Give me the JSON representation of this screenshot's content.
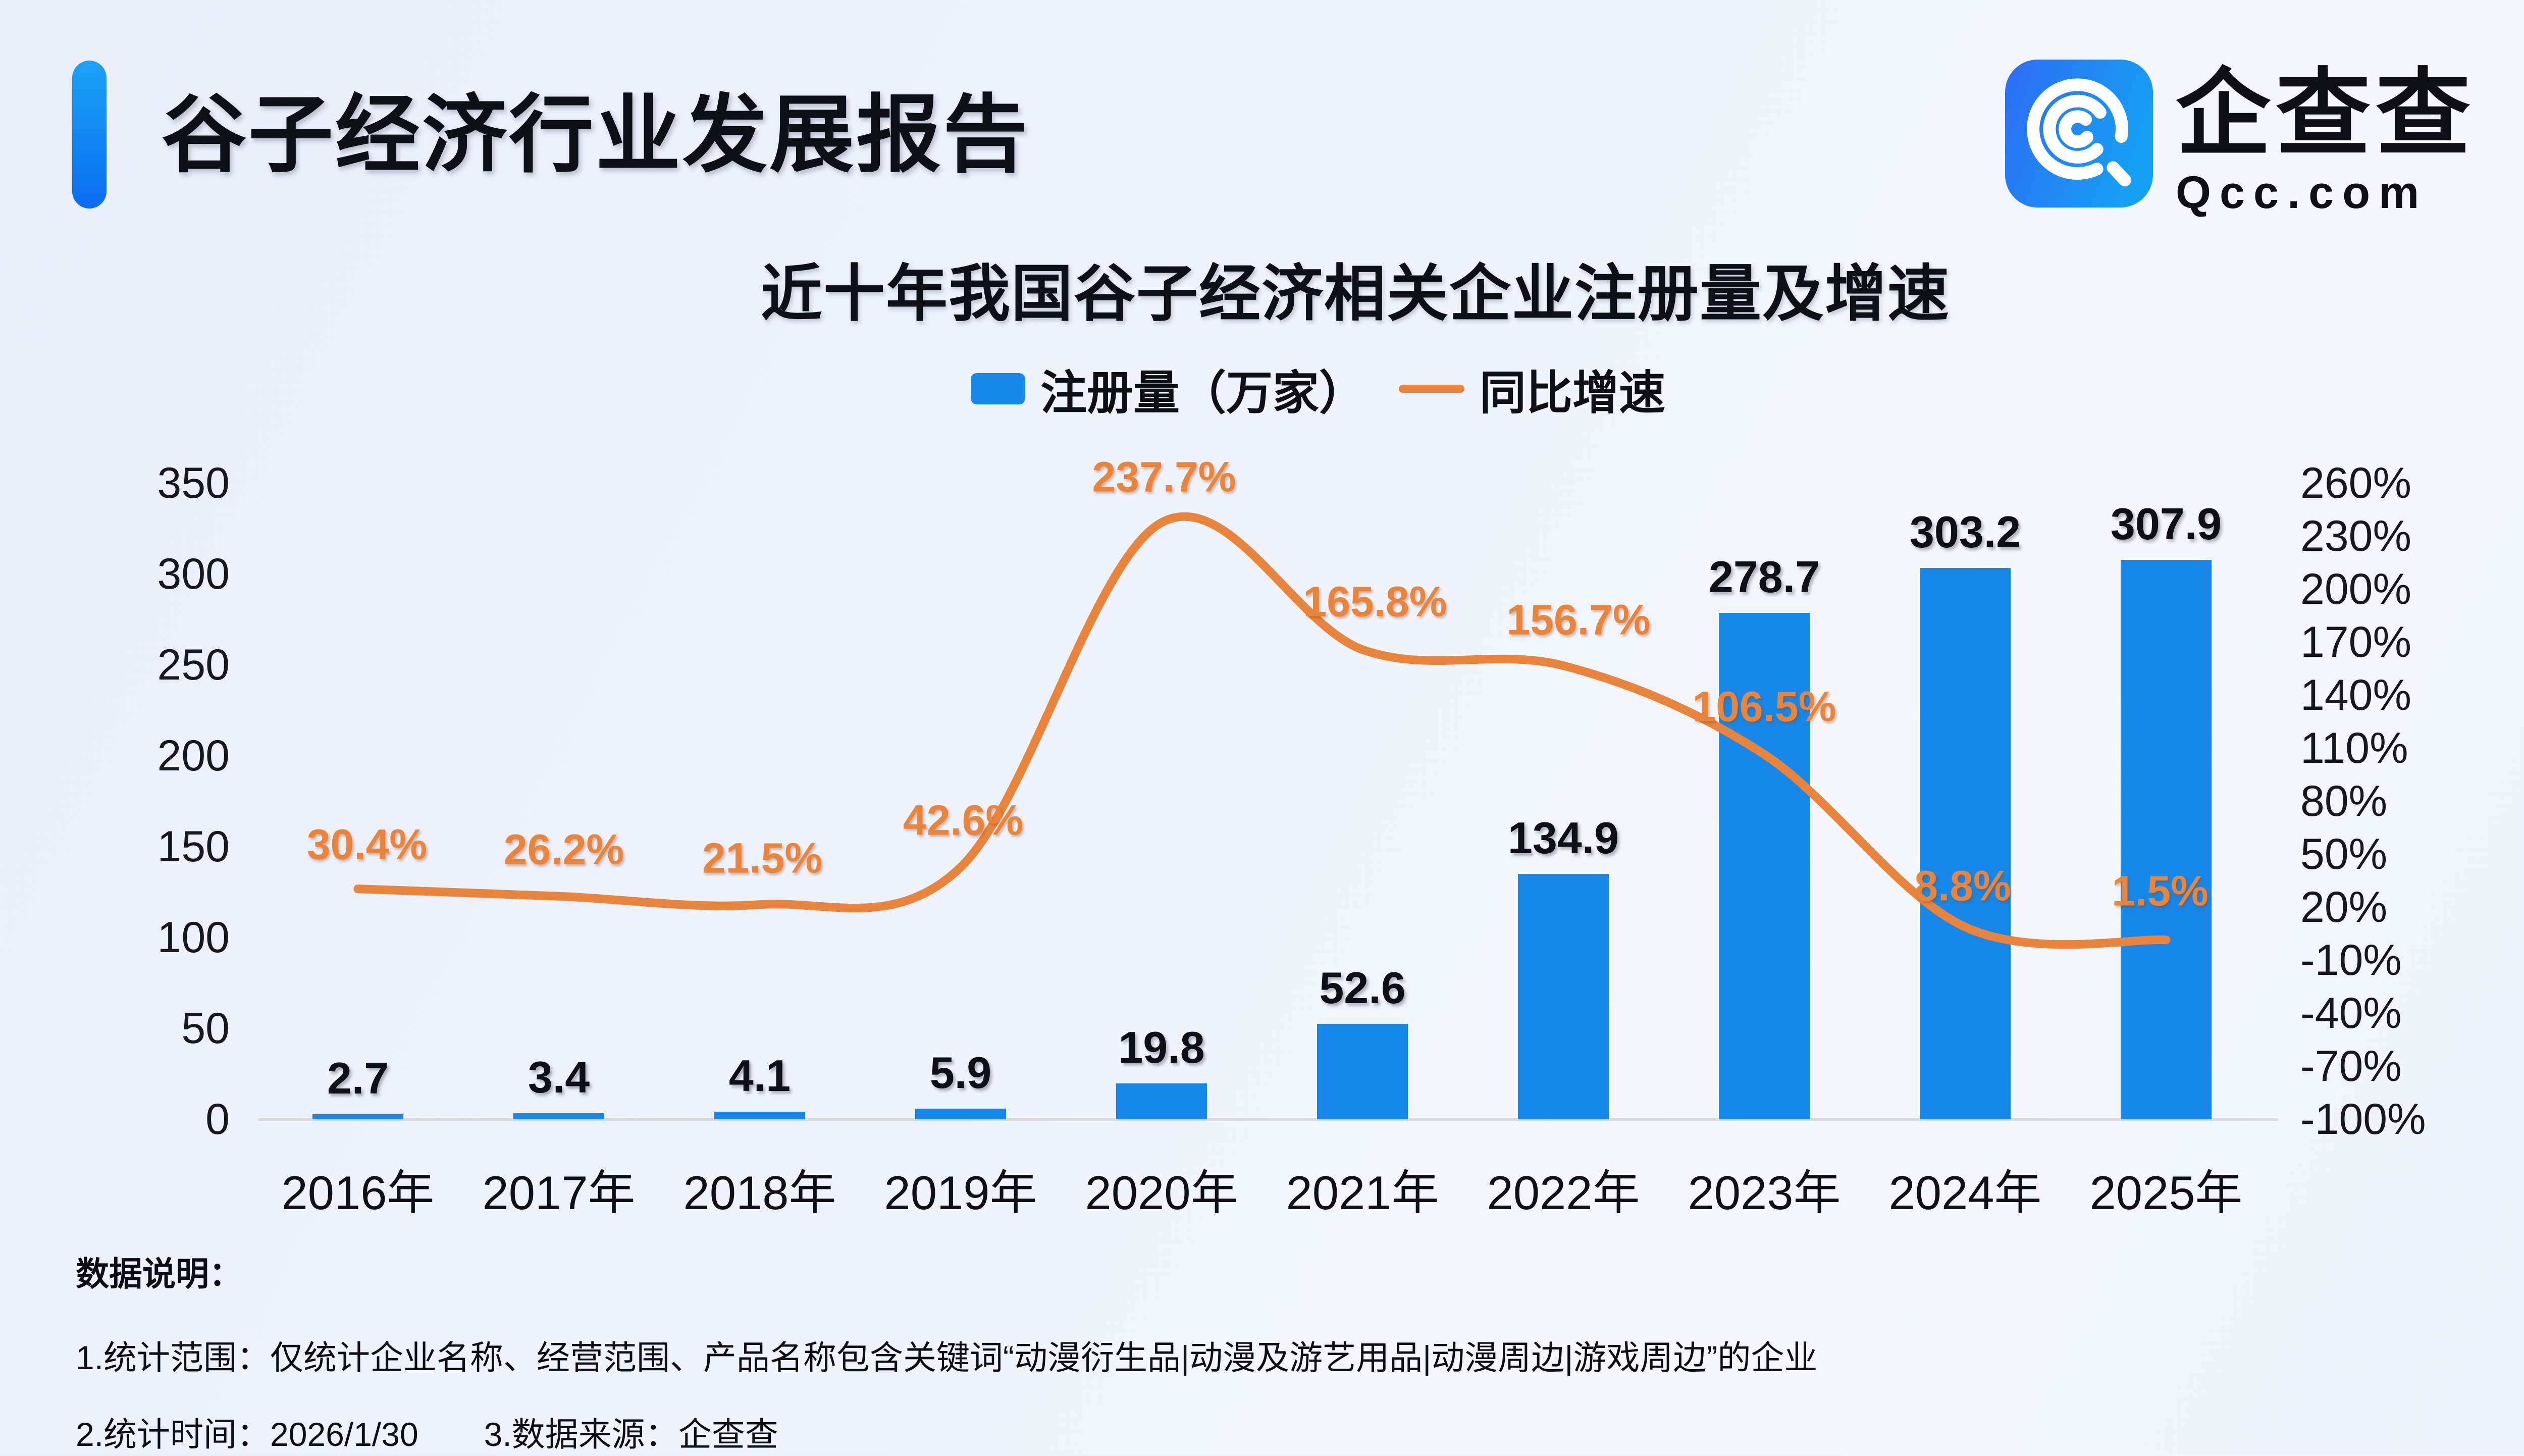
{
  "header": {
    "title": "谷子经济行业发展报告"
  },
  "logo": {
    "brand": "企查查",
    "domain": "Qcc.com",
    "icon": "qcc-logo-icon",
    "icon_gradient": [
      "#2d6cf3",
      "#15a0f3"
    ]
  },
  "chart": {
    "title": "近十年我国谷子经济相关企业注册量及增速",
    "legend": [
      {
        "label": "注册量（万家）",
        "marker": "bar-swatch",
        "color": "#1787e9"
      },
      {
        "label": "同比增速",
        "marker": "line-swatch",
        "color": "#e8843c"
      }
    ]
  },
  "chart_data": {
    "type": "combo-bar-line",
    "title": "近十年我国谷子经济相关企业注册量及增速",
    "categories": [
      "2016年",
      "2017年",
      "2018年",
      "2019年",
      "2020年",
      "2021年",
      "2022年",
      "2023年",
      "2024年",
      "2025年"
    ],
    "series": [
      {
        "name": "注册量（万家）",
        "type": "bar",
        "y_axis": "left",
        "color": "#1787e9",
        "values": [
          2.7,
          3.4,
          4.1,
          5.9,
          19.8,
          52.6,
          134.9,
          278.7,
          303.2,
          307.9
        ]
      },
      {
        "name": "同比增速",
        "type": "line",
        "y_axis": "right",
        "unit": "%",
        "color": "#e8843c",
        "values": [
          30.4,
          26.2,
          21.5,
          42.6,
          237.7,
          165.8,
          156.7,
          106.5,
          8.8,
          1.5
        ]
      }
    ],
    "left_axis": {
      "min": 0,
      "max": 350,
      "ticks": [
        350,
        300,
        250,
        200,
        150,
        100,
        50,
        0
      ]
    },
    "right_axis": {
      "min": -100,
      "max": 260,
      "ticks": [
        "260%",
        "230%",
        "200%",
        "170%",
        "140%",
        "110%",
        "80%",
        "50%",
        "20%",
        "-10%",
        "-40%",
        "-70%",
        "-100%"
      ]
    },
    "grid": false,
    "legend_position": "top",
    "axis_line_color": "#d8d8d8"
  },
  "footer": {
    "heading": "数据说明：",
    "note1": "1.统计范围：仅统计企业名称、经营范围、产品名称包含关键词“动漫衍生品|动漫及游艺用品|动漫周边|游戏周边”的企业",
    "note2": "2.统计时间：2026/1/30",
    "note3": "3.数据来源：企查查"
  }
}
